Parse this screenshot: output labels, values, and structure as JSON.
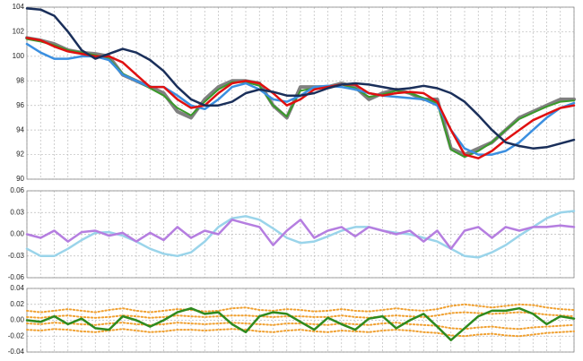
{
  "chart_data": [
    {
      "type": "line",
      "xlim": [
        0,
        40
      ],
      "x": [
        0,
        1,
        2,
        3,
        4,
        5,
        6,
        7,
        8,
        9,
        10,
        11,
        12,
        13,
        14,
        15,
        16,
        17,
        18,
        19,
        20,
        21,
        22,
        23,
        24,
        25,
        26,
        27,
        28,
        29,
        30,
        31,
        32,
        33,
        34,
        35,
        36,
        37,
        38,
        39,
        40
      ],
      "ylim": [
        90,
        104
      ],
      "yticks": [
        90,
        92,
        94,
        96,
        98,
        100,
        102,
        104
      ],
      "grid": true,
      "series": [
        {
          "color": "#808080",
          "width": 4,
          "values": [
            101.5,
            101.3,
            101,
            100.5,
            100.3,
            100.2,
            100,
            98.5,
            98,
            97.5,
            97,
            95.5,
            95,
            96.5,
            97.5,
            98,
            98,
            97.8,
            96,
            95,
            97.5,
            97.5,
            97.5,
            97.8,
            97.5,
            96.5,
            97,
            97.3,
            97,
            96.5,
            96.5,
            92.5,
            92,
            92.5,
            93,
            94,
            95,
            95.5,
            96,
            96.5,
            96.5
          ]
        },
        {
          "color": "#3a9a2a",
          "width": 2,
          "values": [
            101.4,
            101.2,
            100.9,
            100.5,
            100.3,
            100.1,
            99.8,
            98.6,
            98,
            97.4,
            96.8,
            95.8,
            95.2,
            96.3,
            97.3,
            97.9,
            97.9,
            97.6,
            96,
            95.1,
            97.2,
            97.4,
            97.5,
            97.7,
            97.4,
            96.7,
            96.9,
            97.2,
            97,
            96.6,
            96.2,
            92.4,
            91.8,
            92.3,
            93,
            94,
            94.9,
            95.4,
            95.9,
            96.3,
            96.4
          ]
        },
        {
          "color": "#3b8fe0",
          "width": 2.5,
          "values": [
            101,
            100.3,
            99.8,
            99.8,
            100,
            100,
            99.7,
            98.5,
            98,
            97.5,
            97.5,
            96.8,
            96,
            95.7,
            96.5,
            97.5,
            97.8,
            97.3,
            96.5,
            96.3,
            96.8,
            97.5,
            97.6,
            97.5,
            97.3,
            97,
            96.8,
            96.7,
            96.6,
            96.5,
            96,
            94,
            92.5,
            92,
            92,
            92.3,
            93,
            94,
            95,
            95.8,
            96.2
          ]
        },
        {
          "color": "#e01010",
          "width": 2.5,
          "values": [
            101.5,
            101.3,
            100.8,
            100.4,
            100.2,
            100,
            100,
            99.5,
            98.5,
            97.5,
            97.5,
            96.5,
            95.8,
            96,
            97,
            97.8,
            98,
            97.8,
            97,
            96,
            96.5,
            97.3,
            97.5,
            97.7,
            97.7,
            97,
            96.8,
            97,
            97.1,
            97,
            96.3,
            94,
            92,
            91.7,
            92.3,
            93.2,
            94,
            94.8,
            95.3,
            95.8,
            96
          ]
        },
        {
          "color": "#1a2f5a",
          "width": 2.5,
          "values": [
            103.9,
            103.8,
            103.3,
            102,
            100.5,
            99.8,
            100.2,
            100.6,
            100.3,
            99.7,
            98.8,
            97.5,
            96.5,
            96,
            96,
            96.3,
            97,
            97.3,
            97.1,
            96.8,
            96.8,
            97,
            97.4,
            97.7,
            97.8,
            97.7,
            97.5,
            97.3,
            97.4,
            97.6,
            97.4,
            97,
            96.3,
            95.2,
            94,
            93,
            92.7,
            92.5,
            92.6,
            92.9,
            93.2
          ]
        }
      ]
    },
    {
      "type": "line",
      "xlim": [
        0,
        40
      ],
      "x": [
        0,
        1,
        2,
        3,
        4,
        5,
        6,
        7,
        8,
        9,
        10,
        11,
        12,
        13,
        14,
        15,
        16,
        17,
        18,
        19,
        20,
        21,
        22,
        23,
        24,
        25,
        26,
        27,
        28,
        29,
        30,
        31,
        32,
        33,
        34,
        35,
        36,
        37,
        38,
        39,
        40
      ],
      "ylim": [
        -0.06,
        0.06
      ],
      "yticks": [
        {
          "value": -0.06,
          "label": "-0.06"
        },
        {
          "value": -0.03,
          "label": "-0.03"
        },
        {
          "value": 0,
          "label": "0.00"
        },
        {
          "value": 0.03,
          "label": "0.03"
        },
        {
          "value": 0.06,
          "label": "0.06"
        }
      ],
      "grid": true,
      "series": [
        {
          "color": "#9ad4ea",
          "width": 2.5,
          "values": [
            -0.02,
            -0.03,
            -0.03,
            -0.02,
            -0.008,
            0.002,
            0.003,
            -0.002,
            -0.01,
            -0.02,
            -0.027,
            -0.03,
            -0.025,
            -0.01,
            0.01,
            0.022,
            0.025,
            0.02,
            0.008,
            -0.005,
            -0.012,
            -0.01,
            -0.003,
            0.005,
            0.01,
            0.01,
            0.005,
            0.002,
            0,
            -0.005,
            -0.01,
            -0.02,
            -0.03,
            -0.032,
            -0.025,
            -0.015,
            -0.002,
            0.01,
            0.022,
            0.03,
            0.032
          ]
        },
        {
          "color": "#b57ee0",
          "width": 2.5,
          "values": [
            0,
            -0.005,
            0.005,
            -0.01,
            0.003,
            0.005,
            -0.002,
            0.002,
            -0.01,
            0.002,
            -0.008,
            0.01,
            -0.005,
            0.005,
            0,
            0.02,
            0.015,
            0.01,
            -0.015,
            0.005,
            0.02,
            -0.005,
            0.005,
            0.01,
            -0.003,
            0.01,
            0.005,
            0,
            0.005,
            -0.01,
            0.005,
            -0.02,
            0.005,
            0.01,
            -0.005,
            0.01,
            0.005,
            0.01,
            0.01,
            0.012,
            0.01
          ]
        }
      ]
    },
    {
      "type": "line",
      "xlim": [
        0,
        40
      ],
      "x": [
        0,
        1,
        2,
        3,
        4,
        5,
        6,
        7,
        8,
        9,
        10,
        11,
        12,
        13,
        14,
        15,
        16,
        17,
        18,
        19,
        20,
        21,
        22,
        23,
        24,
        25,
        26,
        27,
        28,
        29,
        30,
        31,
        32,
        33,
        34,
        35,
        36,
        37,
        38,
        39,
        40
      ],
      "ylim": [
        -0.04,
        0.04
      ],
      "yticks": [
        {
          "value": -0.04,
          "label": "-0.04"
        },
        {
          "value": -0.02,
          "label": "-0.02"
        },
        {
          "value": 0,
          "label": "0.00"
        },
        {
          "value": 0.02,
          "label": "0.02"
        },
        {
          "value": 0.04,
          "label": "0.04"
        }
      ],
      "grid": true,
      "series": [
        {
          "color": "#f0a030",
          "width": 2,
          "linestyle": "dotted",
          "values": [
            0.012,
            0.01,
            0.012,
            0.014,
            0.012,
            0.01,
            0.013,
            0.015,
            0.012,
            0.01,
            0.012,
            0.014,
            0.013,
            0.011,
            0.012,
            0.015,
            0.016,
            0.013,
            0.012,
            0.014,
            0.013,
            0.011,
            0.012,
            0.014,
            0.012,
            0.011,
            0.013,
            0.015,
            0.013,
            0.012,
            0.014,
            0.018,
            0.02,
            0.018,
            0.016,
            0.018,
            0.02,
            0.019,
            0.016,
            0.014,
            0.013
          ]
        },
        {
          "color": "#f0a030",
          "width": 2,
          "linestyle": "dotted",
          "values": [
            0.004,
            0.003,
            0.005,
            0.006,
            0.004,
            0.003,
            0.004,
            0.006,
            0.005,
            0.003,
            0.004,
            0.006,
            0.005,
            0.004,
            0.005,
            0.006,
            0.006,
            0.005,
            0.004,
            0.005,
            0.005,
            0.004,
            0.004,
            0.006,
            0.004,
            0.003,
            0.005,
            0.006,
            0.005,
            0.004,
            0.006,
            0.009,
            0.01,
            0.009,
            0.008,
            0.009,
            0.01,
            0.009,
            0.007,
            0.006,
            0.005
          ]
        },
        {
          "color": "#f0a030",
          "width": 2,
          "linestyle": "dotted",
          "values": [
            -0.004,
            -0.005,
            -0.003,
            -0.004,
            -0.005,
            -0.006,
            -0.004,
            -0.003,
            -0.005,
            -0.006,
            -0.005,
            -0.003,
            -0.004,
            -0.005,
            -0.004,
            -0.003,
            -0.004,
            -0.005,
            -0.006,
            -0.004,
            -0.004,
            -0.005,
            -0.006,
            -0.004,
            -0.005,
            -0.006,
            -0.004,
            -0.003,
            -0.005,
            -0.006,
            -0.007,
            -0.01,
            -0.011,
            -0.009,
            -0.008,
            -0.01,
            -0.011,
            -0.009,
            -0.008,
            -0.007,
            -0.006
          ]
        },
        {
          "color": "#f0a030",
          "width": 2,
          "linestyle": "dotted",
          "values": [
            -0.012,
            -0.013,
            -0.011,
            -0.012,
            -0.014,
            -0.015,
            -0.013,
            -0.011,
            -0.013,
            -0.015,
            -0.014,
            -0.012,
            -0.012,
            -0.013,
            -0.012,
            -0.011,
            -0.012,
            -0.014,
            -0.015,
            -0.013,
            -0.012,
            -0.014,
            -0.015,
            -0.013,
            -0.014,
            -0.015,
            -0.013,
            -0.012,
            -0.013,
            -0.015,
            -0.016,
            -0.019,
            -0.02,
            -0.018,
            -0.017,
            -0.019,
            -0.02,
            -0.018,
            -0.016,
            -0.015,
            -0.014
          ]
        },
        {
          "color": "#2e8a1e",
          "width": 2.5,
          "values": [
            0,
            -0.002,
            0.005,
            -0.005,
            0.002,
            -0.01,
            -0.012,
            0.005,
            0,
            -0.008,
            0,
            0.01,
            0.015,
            0.008,
            0.01,
            -0.005,
            -0.015,
            0.005,
            0.01,
            0.008,
            -0.002,
            -0.012,
            0.003,
            -0.005,
            -0.012,
            0.002,
            0.005,
            -0.01,
            0,
            0.008,
            -0.008,
            -0.025,
            -0.01,
            0.005,
            0.012,
            0.012,
            0.015,
            0.008,
            -0.005,
            0.005,
            0.002
          ]
        }
      ]
    }
  ]
}
